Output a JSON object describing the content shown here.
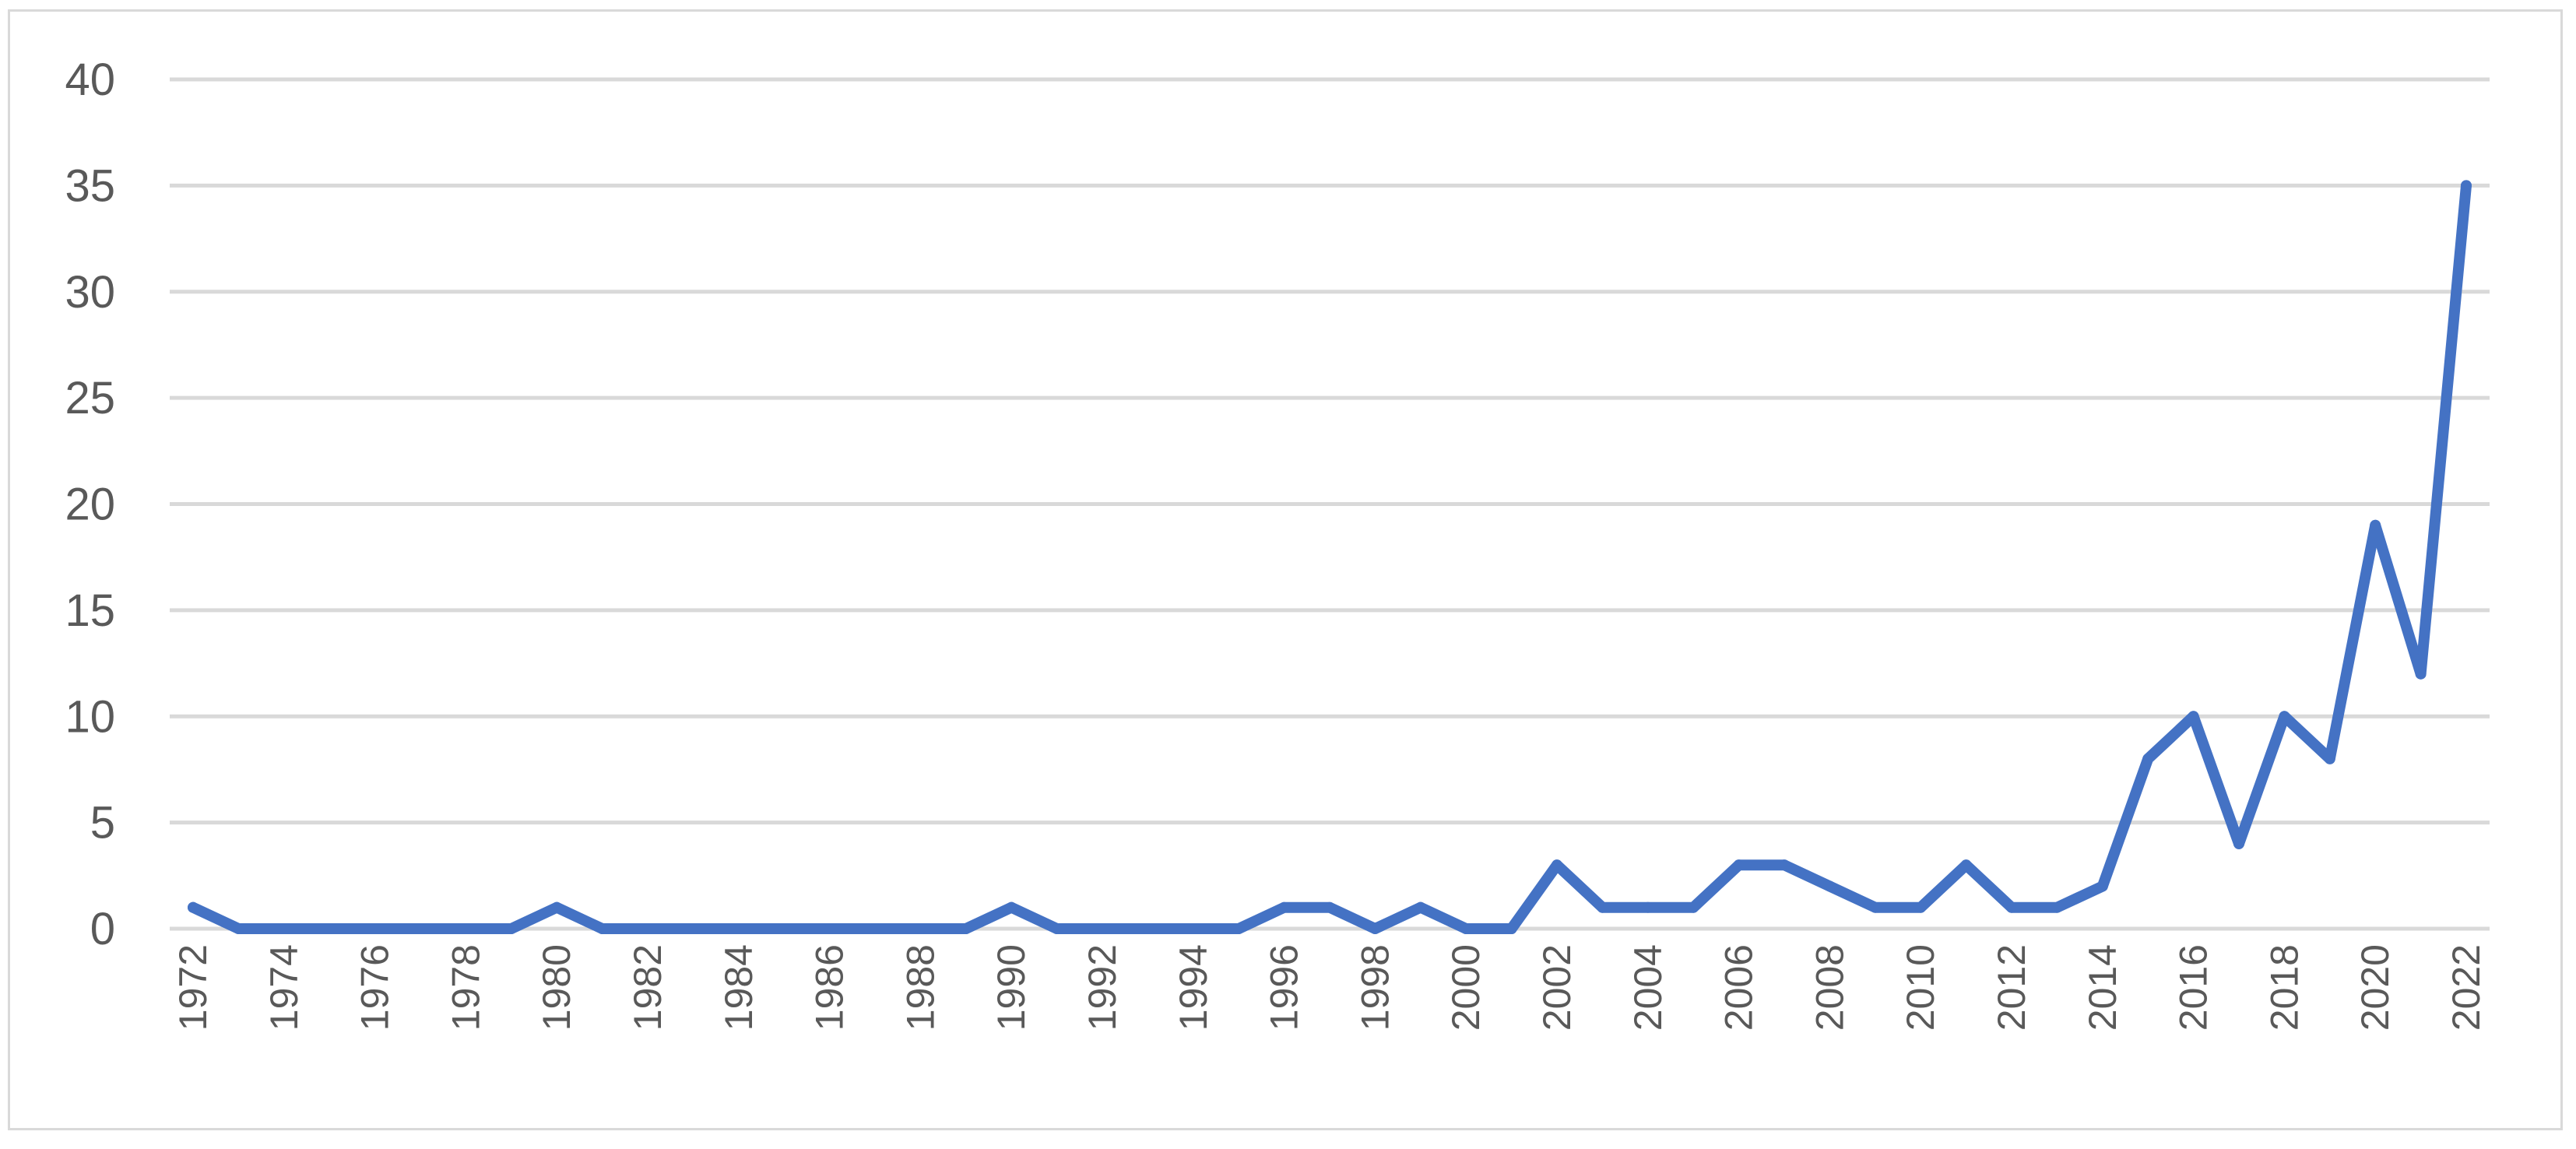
{
  "chart_data": {
    "type": "line",
    "title": "",
    "xlabel": "",
    "ylabel": "",
    "x": [
      1972,
      1973,
      1974,
      1975,
      1976,
      1977,
      1978,
      1979,
      1980,
      1981,
      1982,
      1983,
      1984,
      1985,
      1986,
      1987,
      1988,
      1989,
      1990,
      1991,
      1992,
      1993,
      1994,
      1995,
      1996,
      1997,
      1998,
      1999,
      2000,
      2001,
      2002,
      2003,
      2004,
      2005,
      2006,
      2007,
      2008,
      2009,
      2010,
      2011,
      2012,
      2013,
      2014,
      2015,
      2016,
      2017,
      2018,
      2019,
      2020,
      2021,
      2022
    ],
    "series": [
      {
        "values": [
          1,
          0,
          0,
          0,
          0,
          0,
          0,
          0,
          1,
          0,
          0,
          0,
          0,
          0,
          0,
          0,
          0,
          0,
          1,
          0,
          0,
          0,
          0,
          0,
          1,
          1,
          0,
          1,
          0,
          0,
          3,
          1,
          1,
          1,
          3,
          3,
          2,
          1,
          1,
          3,
          1,
          1,
          2,
          8,
          10,
          4,
          10,
          8,
          19,
          12,
          35
        ]
      }
    ],
    "x_tick_labels": [
      "1972",
      "1974",
      "1976",
      "1978",
      "1980",
      "1982",
      "1984",
      "1986",
      "1988",
      "1990",
      "1992",
      "1994",
      "1996",
      "1998",
      "2000",
      "2002",
      "2004",
      "2006",
      "2008",
      "2010",
      "2012",
      "2014",
      "2016",
      "2018",
      "2020",
      "2022"
    ],
    "y_tick_labels": [
      "0",
      "5",
      "10",
      "15",
      "20",
      "25",
      "30",
      "35",
      "40"
    ],
    "ylim": [
      0,
      40
    ],
    "grid": true,
    "legend": "none",
    "line_color": "#4472c4",
    "grid_color": "#d9d9d9",
    "text_color": "#595959"
  }
}
